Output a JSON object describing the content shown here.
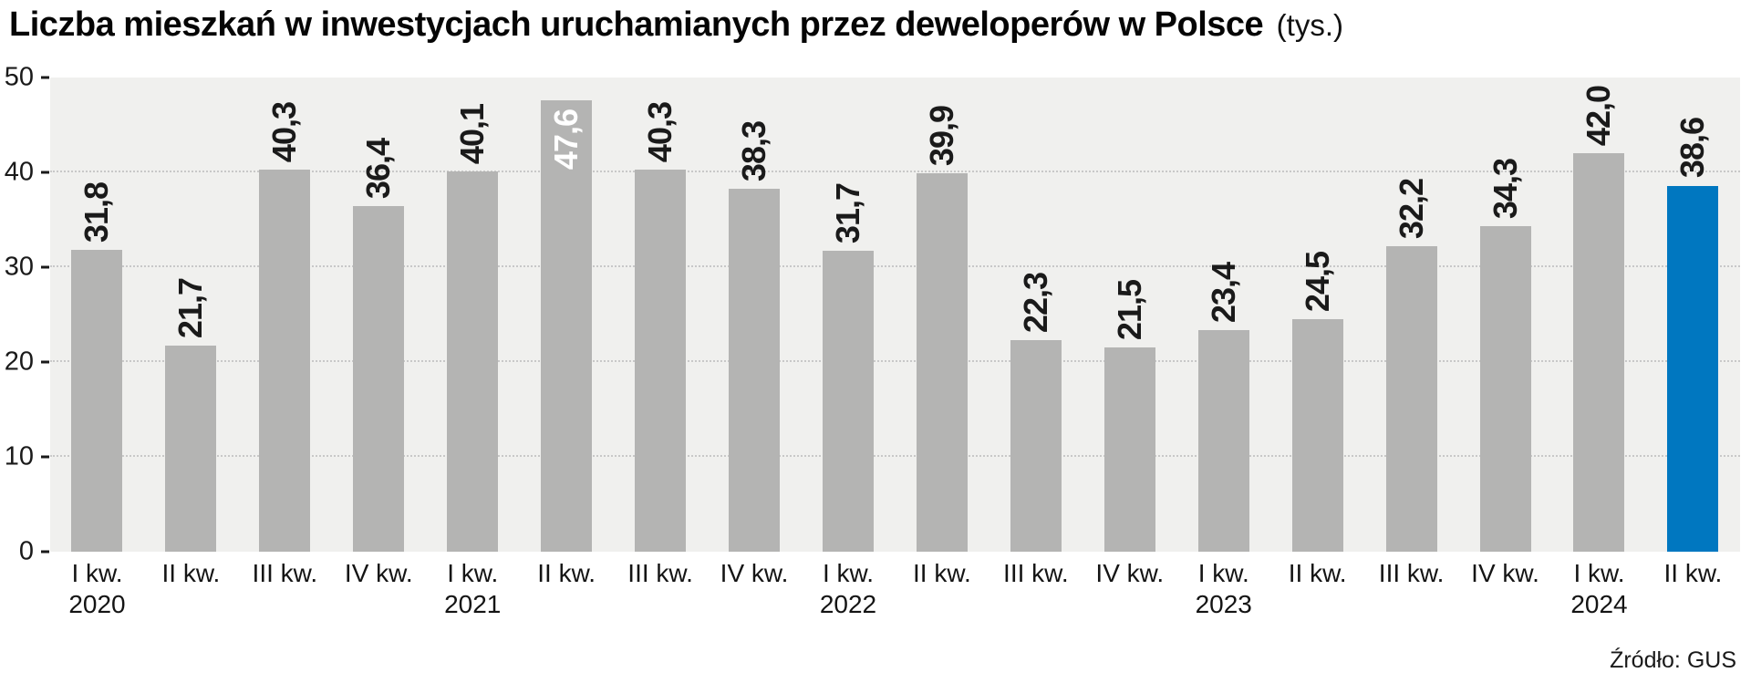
{
  "title": {
    "main": "Liczba mieszkań w inwestycjach uruchamianych przez deweloperów w Polsce",
    "unit": "(tys.)"
  },
  "source": "Źródło: GUS",
  "chart_data": {
    "type": "bar",
    "categories": [
      "I kw.",
      "II kw.",
      "III kw.",
      "IV kw.",
      "I kw.",
      "II kw.",
      "III kw.",
      "IV kw.",
      "I kw.",
      "II kw.",
      "III kw.",
      "IV kw.",
      "I kw.",
      "II kw.",
      "III kw.",
      "IV kw.",
      "I kw.",
      "II kw."
    ],
    "years": [
      {
        "index": 0,
        "label": "2020"
      },
      {
        "index": 4,
        "label": "2021"
      },
      {
        "index": 8,
        "label": "2022"
      },
      {
        "index": 12,
        "label": "2023"
      },
      {
        "index": 16,
        "label": "2024"
      }
    ],
    "values": [
      31.8,
      21.7,
      40.3,
      36.4,
      40.1,
      47.6,
      40.3,
      38.3,
      31.7,
      39.9,
      22.3,
      21.5,
      23.4,
      24.5,
      32.2,
      34.3,
      42.0,
      38.6
    ],
    "value_labels": [
      "31,8",
      "21,7",
      "40,3",
      "36,4",
      "40,1",
      "47,6",
      "40,3",
      "38,3",
      "31,7",
      "39,9",
      "22,3",
      "21,5",
      "23,4",
      "24,5",
      "32,2",
      "34,3",
      "42,0",
      "38,6"
    ],
    "highlight_index": 17,
    "inside_label_index": 5,
    "y_ticks": [
      0,
      10,
      20,
      30,
      40,
      50
    ],
    "ylim": [
      0,
      50
    ],
    "grid": true,
    "legend": "none",
    "colors": {
      "bar": "#b4b4b3",
      "highlight": "#0077c0",
      "plot_bg": "#f0f0ee",
      "grid": "#c8c8c8",
      "label": "#1a1a1a",
      "inside_label": "#ffffff"
    }
  }
}
